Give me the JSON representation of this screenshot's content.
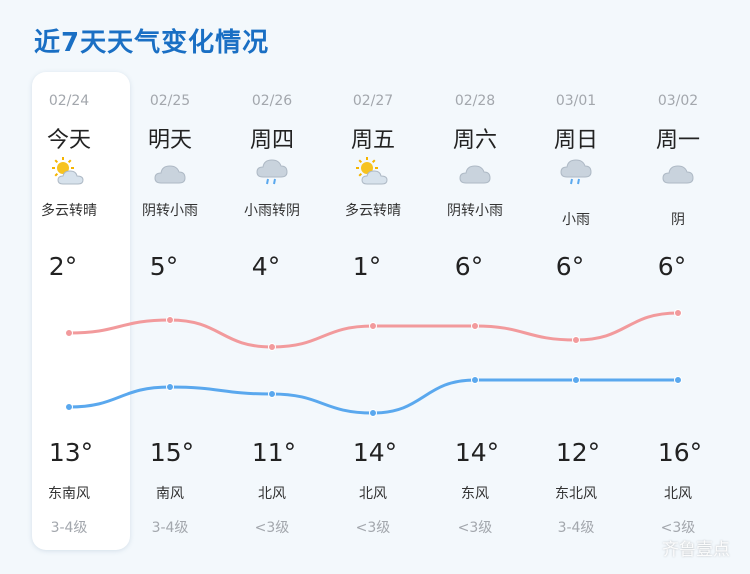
{
  "title": "近7天天气变化情况",
  "days": [
    {
      "date": "02/24",
      "day": "今天",
      "icon": "partly-cloudy-icon",
      "desc": "多云转晴",
      "high": "2°",
      "low": "13°",
      "wind": "东南风",
      "level": "3-4级"
    },
    {
      "date": "02/25",
      "day": "明天",
      "icon": "cloudy-icon",
      "desc": "阴转小雨",
      "high": "5°",
      "low": "15°",
      "wind": "南风",
      "level": "3-4级"
    },
    {
      "date": "02/26",
      "day": "周四",
      "icon": "light-rain-icon",
      "desc": "小雨转阴",
      "high": "4°",
      "low": "11°",
      "wind": "北风",
      "level": "<3级"
    },
    {
      "date": "02/27",
      "day": "周五",
      "icon": "partly-cloudy-icon",
      "desc": "多云转晴",
      "high": "1°",
      "low": "14°",
      "wind": "北风",
      "level": "<3级"
    },
    {
      "date": "02/28",
      "day": "周六",
      "icon": "cloudy-icon",
      "desc": "阴转小雨",
      "high": "6°",
      "low": "14°",
      "wind": "东风",
      "level": "<3级"
    },
    {
      "date": "03/01",
      "day": "周日",
      "icon": "light-rain-icon",
      "desc": "小雨",
      "high": "6°",
      "low": "12°",
      "wind": "东北风",
      "level": "3-4级"
    },
    {
      "date": "03/02",
      "day": "周一",
      "icon": "cloudy-icon",
      "desc": "阴",
      "high": "6°",
      "low": "16°",
      "wind": "北风",
      "level": "<3级"
    }
  ],
  "chart_data": {
    "type": "line",
    "series": [
      {
        "color": "#f29a9c",
        "values": [
          2,
          5,
          4,
          1,
          6,
          6,
          6
        ]
      },
      {
        "color": "#5aa8ee",
        "values": [
          13,
          15,
          11,
          14,
          14,
          12,
          16
        ]
      }
    ]
  },
  "colors": {
    "accent": "#1a6fc4",
    "high_line": "#f29a9c",
    "low_line": "#5aa8ee"
  },
  "watermark": "齐鲁壹点"
}
